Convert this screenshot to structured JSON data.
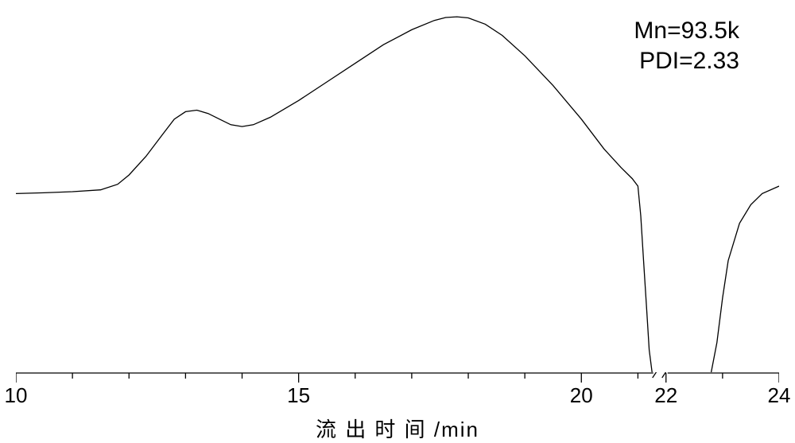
{
  "chart": {
    "type": "line",
    "xlim": [
      10,
      24
    ],
    "x_break": [
      21.3,
      22.0
    ],
    "ylim": [
      0,
      100
    ],
    "xlabel": "流 出 时 间  /min",
    "label_fontsize": 26,
    "tick_fontsize": 26,
    "background_color": "#ffffff",
    "curve_color": "#000000",
    "curve_width": 1.3,
    "axis_color": "#000000",
    "axis_width": 1.3,
    "major_ticks": [
      10,
      15,
      20
    ],
    "tick_labels": [
      "10",
      "15",
      "20"
    ],
    "post_break_ticks": [
      22,
      24
    ],
    "post_break_labels": [
      "22",
      "24"
    ],
    "series": [
      {
        "x": 10.0,
        "y": 48.0
      },
      {
        "x": 10.5,
        "y": 48.2
      },
      {
        "x": 11.0,
        "y": 48.5
      },
      {
        "x": 11.5,
        "y": 49.0
      },
      {
        "x": 11.8,
        "y": 50.5
      },
      {
        "x": 12.0,
        "y": 53.0
      },
      {
        "x": 12.3,
        "y": 58.0
      },
      {
        "x": 12.6,
        "y": 64.0
      },
      {
        "x": 12.8,
        "y": 68.0
      },
      {
        "x": 13.0,
        "y": 70.0
      },
      {
        "x": 13.2,
        "y": 70.4
      },
      {
        "x": 13.4,
        "y": 69.5
      },
      {
        "x": 13.6,
        "y": 68.0
      },
      {
        "x": 13.8,
        "y": 66.5
      },
      {
        "x": 14.0,
        "y": 66.0
      },
      {
        "x": 14.2,
        "y": 66.5
      },
      {
        "x": 14.5,
        "y": 68.5
      },
      {
        "x": 15.0,
        "y": 73.0
      },
      {
        "x": 15.5,
        "y": 78.0
      },
      {
        "x": 16.0,
        "y": 83.0
      },
      {
        "x": 16.5,
        "y": 88.0
      },
      {
        "x": 17.0,
        "y": 92.0
      },
      {
        "x": 17.4,
        "y": 94.5
      },
      {
        "x": 17.6,
        "y": 95.3
      },
      {
        "x": 17.8,
        "y": 95.5
      },
      {
        "x": 18.0,
        "y": 95.2
      },
      {
        "x": 18.3,
        "y": 93.5
      },
      {
        "x": 18.6,
        "y": 90.5
      },
      {
        "x": 19.0,
        "y": 85.0
      },
      {
        "x": 19.5,
        "y": 77.0
      },
      {
        "x": 20.0,
        "y": 68.0
      },
      {
        "x": 20.4,
        "y": 60.0
      },
      {
        "x": 20.7,
        "y": 55.0
      },
      {
        "x": 20.9,
        "y": 52.0
      },
      {
        "x": 21.0,
        "y": 50.0
      },
      {
        "x": 21.05,
        "y": 42.0
      },
      {
        "x": 21.1,
        "y": 30.0
      },
      {
        "x": 21.15,
        "y": 18.0
      },
      {
        "x": 21.2,
        "y": 6.0
      },
      {
        "x": 21.25,
        "y": 0.0
      }
    ],
    "series_after_break": [
      {
        "x": 22.8,
        "y": 0.0
      },
      {
        "x": 22.9,
        "y": 8.0
      },
      {
        "x": 23.0,
        "y": 20.0
      },
      {
        "x": 23.1,
        "y": 30.0
      },
      {
        "x": 23.3,
        "y": 40.0
      },
      {
        "x": 23.5,
        "y": 45.0
      },
      {
        "x": 23.7,
        "y": 48.0
      },
      {
        "x": 24.0,
        "y": 50.0
      }
    ],
    "annotations": [
      {
        "text": "Mn=93.5k"
      },
      {
        "text": "PDI=2.33"
      }
    ],
    "annotation_fontsize": 30
  }
}
